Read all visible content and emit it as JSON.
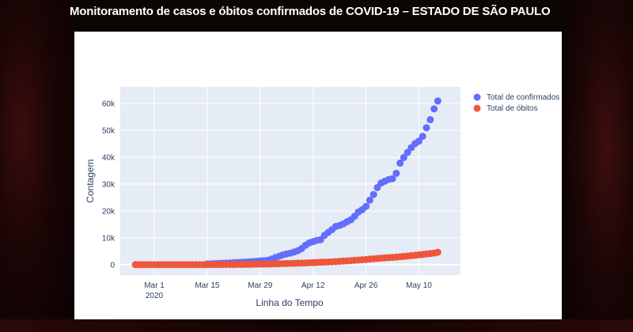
{
  "page": {
    "title": "Monitoramento de casos e óbitos confirmados de COVID-19 – ESTADO DE SÃO PAULO"
  },
  "colors": {
    "confirmed": "#636efa",
    "deaths": "#ef553b",
    "plot_bg": "#e5ecf6",
    "grid": "#ffffff",
    "text": "#2a3f5f"
  },
  "chart_data": {
    "type": "scatter",
    "title": "",
    "xlabel": "Linha do Tempo",
    "ylabel": "Contagem",
    "x_start": "2020-02-25",
    "xlim": [
      "2020-02-21",
      "2020-05-21"
    ],
    "ylim": [
      -3900,
      66200
    ],
    "x_ticks": [
      {
        "date": "2020-03-01",
        "label": "Mar 1",
        "sublabel": "2020"
      },
      {
        "date": "2020-03-15",
        "label": "Mar 15",
        "sublabel": ""
      },
      {
        "date": "2020-03-29",
        "label": "Mar 29",
        "sublabel": ""
      },
      {
        "date": "2020-04-12",
        "label": "Apr 12",
        "sublabel": ""
      },
      {
        "date": "2020-04-26",
        "label": "Apr 26",
        "sublabel": ""
      },
      {
        "date": "2020-05-10",
        "label": "May 10",
        "sublabel": ""
      }
    ],
    "y_ticks": [
      {
        "value": 0,
        "label": "0"
      },
      {
        "value": 10000,
        "label": "10k"
      },
      {
        "value": 20000,
        "label": "20k"
      },
      {
        "value": 30000,
        "label": "30k"
      },
      {
        "value": 40000,
        "label": "40k"
      },
      {
        "value": 50000,
        "label": "50k"
      },
      {
        "value": 60000,
        "label": "60k"
      }
    ],
    "legend_position": "top-right",
    "series": [
      {
        "name": "Total de confirmados",
        "color": "#636efa",
        "values": [
          null,
          null,
          null,
          null,
          null,
          null,
          null,
          null,
          null,
          null,
          null,
          null,
          null,
          null,
          null,
          null,
          null,
          null,
          null,
          250,
          310,
          370,
          440,
          510,
          580,
          650,
          720,
          800,
          880,
          970,
          1050,
          1150,
          1250,
          1360,
          1470,
          1600,
          2050,
          2600,
          3100,
          3600,
          4000,
          4300,
          4700,
          5200,
          6000,
          7200,
          8100,
          8600,
          9000,
          9300,
          10900,
          12000,
          13000,
          14200,
          14600,
          15200,
          16000,
          16700,
          18000,
          19600,
          20500,
          21700,
          24000,
          26100,
          28700,
          30400,
          31100,
          31700,
          32000,
          34000,
          37800,
          39900,
          41800,
          43600,
          45100,
          46000,
          47800,
          51000,
          54000,
          58000,
          61000
        ]
      },
      {
        "name": "Total de óbitos",
        "color": "#ef553b",
        "values": [
          0,
          0,
          0,
          0,
          0,
          0,
          0,
          0,
          0,
          0,
          0,
          0,
          0,
          0,
          0,
          0,
          0,
          0,
          0,
          5,
          10,
          15,
          20,
          30,
          40,
          50,
          60,
          70,
          85,
          100,
          120,
          140,
          160,
          180,
          200,
          230,
          260,
          300,
          340,
          380,
          420,
          460,
          500,
          540,
          590,
          640,
          690,
          740,
          800,
          860,
          920,
          990,
          1060,
          1140,
          1220,
          1310,
          1400,
          1500,
          1600,
          1700,
          1810,
          1920,
          2040,
          2160,
          2280,
          2400,
          2520,
          2620,
          2700,
          2800,
          2920,
          3050,
          3200,
          3350,
          3500,
          3650,
          3800,
          3950,
          4100,
          4300,
          4600
        ]
      }
    ]
  }
}
